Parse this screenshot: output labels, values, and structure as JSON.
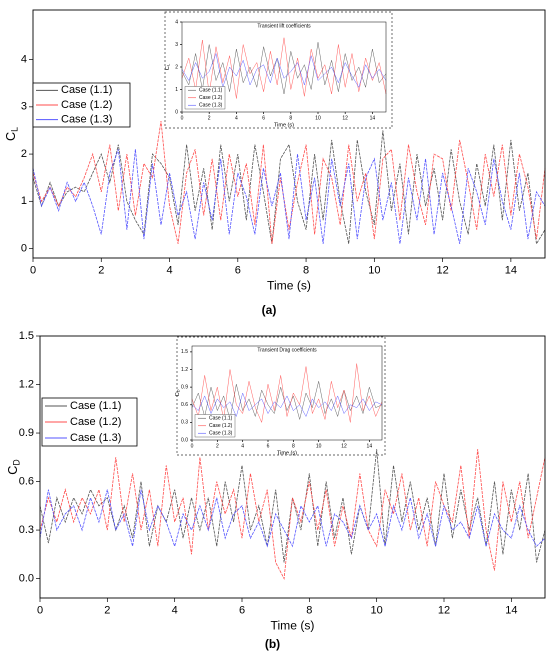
{
  "chart_data": [
    {
      "type": "line",
      "ylabel": "C",
      "ylabel_subscript": "L",
      "xlabel": "Time (s)",
      "caption": "(a)",
      "legend": "center left",
      "xlim": [
        0,
        15
      ],
      "xticks": [
        0,
        2,
        4,
        6,
        8,
        10,
        12,
        14
      ],
      "ylim": [
        -0.2,
        5.05
      ],
      "yticks": [
        0,
        1,
        2,
        3,
        4
      ],
      "grid": false,
      "x": [
        0,
        0.25,
        0.5,
        0.75,
        1,
        1.25,
        1.5,
        1.75,
        2,
        2.25,
        2.5,
        2.75,
        3,
        3.25,
        3.5,
        3.75,
        4,
        4.25,
        4.5,
        4.75,
        5,
        5.25,
        5.5,
        5.75,
        6,
        6.25,
        6.5,
        6.75,
        7,
        7.25,
        7.5,
        7.75,
        8,
        8.25,
        8.5,
        8.75,
        9,
        9.25,
        9.5,
        9.75,
        10,
        10.25,
        10.5,
        10.75,
        11,
        11.25,
        11.5,
        11.75,
        12,
        12.25,
        12.5,
        12.75,
        13,
        13.25,
        13.5,
        13.75,
        14,
        14.25,
        14.5,
        14.75,
        15
      ],
      "series": [
        {
          "name": "Case (1.1)",
          "color": "#555555",
          "values": [
            1.5,
            0.9,
            1.4,
            0.9,
            1.2,
            1.3,
            1.2,
            1.6,
            2.0,
            1.4,
            2.2,
            1.0,
            0.6,
            0.3,
            2.0,
            1.8,
            1.5,
            0.5,
            2.2,
            0.8,
            1.7,
            0.4,
            2.2,
            1.0,
            2.0,
            0.6,
            2.2,
            1.2,
            0.1,
            1.9,
            2.2,
            1.0,
            0.4,
            2.0,
            0.6,
            2.3,
            1.0,
            0.1,
            2.3,
            1.2,
            0.5,
            2.5,
            0.8,
            1.8,
            0.3,
            2.0,
            0.9,
            1.7,
            0.6,
            2.1,
            1.0,
            0.3,
            1.8,
            0.9,
            2.2,
            0.6,
            2.3,
            0.8,
            1.6,
            0.1,
            0.4
          ]
        },
        {
          "name": "Case (1.2)",
          "color": "#ff4d4d",
          "values": [
            1.6,
            1.0,
            1.3,
            0.9,
            1.3,
            1.1,
            1.5,
            2.0,
            1.2,
            2.2,
            0.8,
            2.0,
            0.7,
            1.8,
            1.5,
            2.7,
            0.9,
            0.1,
            1.6,
            2.1,
            0.7,
            1.9,
            0.6,
            2.0,
            1.1,
            1.8,
            0.5,
            2.2,
            0.1,
            1.5,
            0.4,
            1.4,
            2.2,
            0.3,
            1.9,
            1.5,
            0.5,
            2.2,
            1.0,
            1.6,
            0.2,
            1.9,
            2.1,
            0.6,
            2.2,
            1.2,
            0.5,
            2.0,
            1.9,
            0.8,
            2.3,
            1.4,
            0.4,
            2.0,
            1.1,
            2.2,
            0.7,
            2.0,
            1.3,
            0.2,
            1.7
          ]
        },
        {
          "name": "Case (1.3)",
          "color": "#5555ff",
          "values": [
            1.7,
            0.9,
            1.3,
            0.8,
            1.4,
            1.0,
            1.4,
            0.9,
            0.3,
            1.6,
            2.1,
            0.4,
            2.1,
            0.2,
            1.8,
            0.5,
            1.6,
            0.7,
            1.2,
            0.2,
            1.4,
            0.6,
            1.9,
            0.3,
            1.6,
            1.1,
            0.3,
            1.7,
            0.9,
            1.6,
            0.2,
            2.0,
            0.6,
            1.5,
            0.1,
            1.9,
            0.9,
            1.8,
            0.2,
            1.5,
            1.9,
            0.6,
            1.4,
            0.1,
            1.5,
            0.6,
            1.9,
            0.3,
            1.6,
            0.9,
            0.1,
            1.7,
            1.2,
            0.5,
            1.9,
            1.0,
            0.4,
            1.6,
            0.2,
            1.2,
            0.9
          ]
        }
      ]
    },
    {
      "type": "line",
      "title": "Transient lift coefficients",
      "ylabel": "C",
      "ylabel_subscript": "L",
      "xlabel": "Time (s)",
      "legend": "lower left",
      "xlim": [
        0,
        15
      ],
      "xticks": [
        0,
        2,
        4,
        6,
        8,
        10,
        12,
        14
      ],
      "ylim": [
        0,
        4
      ],
      "yticks": [
        0,
        1,
        2,
        3,
        4
      ],
      "grid": false,
      "x": [
        0,
        0.5,
        1,
        1.5,
        2,
        2.5,
        3,
        3.5,
        4,
        4.5,
        5,
        5.5,
        6,
        6.5,
        7,
        7.5,
        8,
        8.5,
        9,
        9.5,
        10,
        10.5,
        11,
        11.5,
        12,
        12.5,
        13,
        13.5,
        14,
        14.5,
        15
      ],
      "series": [
        {
          "name": "Case (1.1)",
          "color": "#555555",
          "values": [
            1.8,
            1.2,
            2.6,
            1.0,
            3.0,
            1.4,
            2.2,
            0.9,
            2.8,
            1.3,
            2.0,
            1.1,
            2.9,
            1.6,
            2.4,
            0.8,
            2.7,
            1.5,
            2.1,
            1.0,
            3.1,
            1.2,
            2.3,
            0.9,
            2.6,
            1.4,
            2.0,
            1.1,
            2.8,
            1.3,
            1.7
          ]
        },
        {
          "name": "Case (1.2)",
          "color": "#ff4d4d",
          "values": [
            1.5,
            2.4,
            1.0,
            3.2,
            0.8,
            2.9,
            1.3,
            2.5,
            0.6,
            3.0,
            1.7,
            2.2,
            0.9,
            2.7,
            1.2,
            3.3,
            1.0,
            2.4,
            0.7,
            2.8,
            1.5,
            2.1,
            0.8,
            3.0,
            1.1,
            2.6,
            0.9,
            2.4,
            1.4,
            2.2,
            0.8
          ]
        },
        {
          "name": "Case (1.3)",
          "color": "#5555ff",
          "values": [
            1.9,
            1.4,
            2.2,
            1.5,
            1.8,
            2.6,
            1.1,
            2.0,
            1.6,
            2.3,
            1.2,
            1.9,
            2.1,
            1.3,
            2.4,
            1.5,
            1.8,
            2.2,
            1.2,
            2.5,
            1.4,
            1.7,
            2.0,
            1.3,
            2.2,
            1.6,
            1.1,
            2.1,
            1.5,
            1.9,
            1.4
          ]
        }
      ]
    },
    {
      "type": "line",
      "ylabel": "C",
      "ylabel_subscript": "D",
      "xlabel": "Time (s)",
      "caption": "(b)",
      "legend": "center left",
      "xlim": [
        0,
        15
      ],
      "xticks": [
        0,
        2,
        4,
        6,
        8,
        10,
        12,
        14
      ],
      "ylim": [
        -0.12,
        1.5
      ],
      "yticks": [
        {
          "value": 0,
          "label": "0.0"
        },
        0.3,
        0.6,
        0.9,
        1.2,
        1.5
      ],
      "grid": false,
      "x": [
        0,
        0.25,
        0.5,
        0.75,
        1,
        1.25,
        1.5,
        1.75,
        2,
        2.25,
        2.5,
        2.75,
        3,
        3.25,
        3.5,
        3.75,
        4,
        4.25,
        4.5,
        4.75,
        5,
        5.25,
        5.5,
        5.75,
        6,
        6.25,
        6.5,
        6.75,
        7,
        7.25,
        7.5,
        7.75,
        8,
        8.25,
        8.5,
        8.75,
        9,
        9.25,
        9.5,
        9.75,
        10,
        10.25,
        10.5,
        10.75,
        11,
        11.25,
        11.5,
        11.75,
        12,
        12.25,
        12.5,
        12.75,
        13,
        13.25,
        13.5,
        13.75,
        14,
        14.25,
        14.5,
        14.75,
        15
      ],
      "series": [
        {
          "name": "Case (1.1)",
          "color": "#555555",
          "values": [
            0.45,
            0.22,
            0.5,
            0.35,
            0.5,
            0.4,
            0.55,
            0.45,
            0.5,
            0.3,
            0.45,
            0.25,
            0.6,
            0.2,
            0.45,
            0.35,
            0.55,
            0.25,
            0.5,
            0.3,
            0.5,
            0.2,
            0.6,
            0.35,
            0.7,
            0.3,
            0.45,
            0.2,
            0.55,
            0.1,
            0.5,
            0.3,
            0.65,
            0.2,
            0.6,
            0.25,
            0.5,
            0.15,
            0.45,
            0.3,
            0.8,
            0.2,
            0.7,
            0.35,
            0.6,
            0.3,
            0.5,
            0.2,
            0.65,
            0.25,
            0.55,
            0.3,
            0.5,
            0.2,
            0.6,
            0.15,
            0.55,
            0.3,
            0.65,
            0.1,
            0.3
          ]
        },
        {
          "name": "Case (1.2)",
          "color": "#ff4d4d",
          "values": [
            0.3,
            0.5,
            0.35,
            0.55,
            0.35,
            0.5,
            0.4,
            0.55,
            0.3,
            0.75,
            0.35,
            0.65,
            0.3,
            0.55,
            0.2,
            0.7,
            0.35,
            0.5,
            0.15,
            0.75,
            0.3,
            0.6,
            0.4,
            0.55,
            0.25,
            0.65,
            0.35,
            0.55,
            0.1,
            0.0,
            0.5,
            0.35,
            0.6,
            0.3,
            0.55,
            0.2,
            0.45,
            0.25,
            0.65,
            0.3,
            0.2,
            0.55,
            0.4,
            0.65,
            0.3,
            0.5,
            0.2,
            0.6,
            0.45,
            0.35,
            0.7,
            0.25,
            0.8,
            0.3,
            0.05,
            0.6,
            0.35,
            0.6,
            0.25,
            0.5,
            0.75
          ]
        },
        {
          "name": "Case (1.3)",
          "color": "#5555ff",
          "values": [
            0.25,
            0.55,
            0.3,
            0.4,
            0.45,
            0.3,
            0.5,
            0.35,
            0.55,
            0.3,
            0.4,
            0.2,
            0.55,
            0.3,
            0.45,
            0.35,
            0.2,
            0.4,
            0.3,
            0.45,
            0.3,
            0.5,
            0.25,
            0.4,
            0.45,
            0.25,
            0.35,
            0.2,
            0.4,
            0.3,
            0.2,
            0.45,
            0.35,
            0.45,
            0.2,
            0.4,
            0.35,
            0.25,
            0.45,
            0.3,
            0.4,
            0.2,
            0.45,
            0.3,
            0.5,
            0.25,
            0.4,
            0.2,
            0.45,
            0.3,
            0.35,
            0.25,
            0.45,
            0.2,
            0.4,
            0.3,
            0.25,
            0.45,
            0.3,
            0.2,
            0.25
          ]
        }
      ]
    },
    {
      "type": "line",
      "title": "Transient Drag coefficients",
      "ylabel": "C",
      "ylabel_subscript": "D",
      "xlabel": "Time (s)",
      "legend": "lower left",
      "xlim": [
        0,
        15
      ],
      "xticks": [
        0,
        2,
        4,
        6,
        8,
        10,
        12,
        14
      ],
      "ylim": [
        0,
        1.6
      ],
      "yticks": [
        {
          "value": 0,
          "label": "0.0"
        },
        0.3,
        0.6,
        0.9,
        1.2,
        1.5
      ],
      "grid": false,
      "x": [
        0,
        0.5,
        1,
        1.5,
        2,
        2.5,
        3,
        3.5,
        4,
        4.5,
        5,
        5.5,
        6,
        6.5,
        7,
        7.5,
        8,
        8.5,
        9,
        9.5,
        10,
        10.5,
        11,
        11.5,
        12,
        12.5,
        13,
        13.5,
        14,
        14.5,
        15
      ],
      "series": [
        {
          "name": "Case (1.1)",
          "color": "#555555",
          "values": [
            0.55,
            0.8,
            0.4,
            0.9,
            0.5,
            0.75,
            0.35,
            0.95,
            0.5,
            0.7,
            0.4,
            0.85,
            0.6,
            0.45,
            0.9,
            0.5,
            0.75,
            0.35,
            0.8,
            0.55,
            1.0,
            0.45,
            0.7,
            0.4,
            0.85,
            0.5,
            0.75,
            0.45,
            0.9,
            0.55,
            0.6
          ]
        },
        {
          "name": "Case (1.2)",
          "color": "#ff4d4d",
          "values": [
            0.7,
            0.4,
            1.1,
            0.5,
            0.9,
            0.35,
            1.2,
            0.6,
            0.45,
            1.0,
            0.55,
            0.3,
            0.95,
            0.5,
            1.1,
            0.4,
            0.8,
            0.6,
            1.25,
            0.45,
            0.7,
            0.35,
            1.0,
            0.55,
            0.85,
            0.3,
            1.3,
            0.5,
            0.75,
            0.4,
            0.65
          ]
        },
        {
          "name": "Case (1.3)",
          "color": "#5555ff",
          "values": [
            0.6,
            0.5,
            0.75,
            0.45,
            0.7,
            0.55,
            0.65,
            0.4,
            0.8,
            0.5,
            0.6,
            0.7,
            0.45,
            0.65,
            0.55,
            0.75,
            0.5,
            0.6,
            0.4,
            0.7,
            0.55,
            0.65,
            0.5,
            0.75,
            0.45,
            0.6,
            0.55,
            0.7,
            0.5,
            0.65,
            0.6
          ]
        }
      ]
    }
  ]
}
